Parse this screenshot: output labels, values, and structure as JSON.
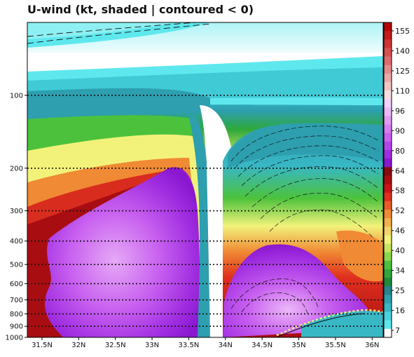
{
  "chart_data": {
    "type": "heatmap",
    "title": "U-wind (kt, shaded | contoured < 0)",
    "x_axis": {
      "range": [
        31.3,
        36.15
      ],
      "ticks": [
        {
          "value": 31.5,
          "label": "31.5N"
        },
        {
          "value": 32.0,
          "label": "32N"
        },
        {
          "value": 32.5,
          "label": "32.5N"
        },
        {
          "value": 33.0,
          "label": "33N"
        },
        {
          "value": 33.5,
          "label": "33.5N"
        },
        {
          "value": 34.0,
          "label": "34N"
        },
        {
          "value": 34.5,
          "label": "34.5N"
        },
        {
          "value": 35.0,
          "label": "35N"
        },
        {
          "value": 35.5,
          "label": "35.5N"
        },
        {
          "value": 36.0,
          "label": "36N"
        }
      ]
    },
    "y_axis": {
      "scale": "log",
      "inverted": true,
      "range": [
        1000,
        50
      ],
      "ticks": [
        {
          "value": 100,
          "label": "100"
        },
        {
          "value": 200,
          "label": "200"
        },
        {
          "value": 300,
          "label": "300"
        },
        {
          "value": 400,
          "label": "400"
        },
        {
          "value": 500,
          "label": "500"
        },
        {
          "value": 600,
          "label": "600"
        },
        {
          "value": 700,
          "label": "700"
        },
        {
          "value": 800,
          "label": "800"
        },
        {
          "value": 900,
          "label": "900"
        },
        {
          "value": 1000,
          "label": "1000"
        }
      ]
    },
    "grid": "dotted horizontal lines at pressure ticks",
    "colorbar": {
      "labels": [
        "155",
        "140",
        "125",
        "110",
        "96",
        "90",
        "80",
        "64",
        "58",
        "52",
        "46",
        "40",
        "34",
        "25",
        "16",
        "7"
      ],
      "colors": [
        "#ffffff",
        "#5ee8ee",
        "#4ad2dd",
        "#38b7c5",
        "#2d9faf",
        "#25868f",
        "#1c8a3a",
        "#2fa83a",
        "#4cc23c",
        "#8ad84a",
        "#c6e65e",
        "#f2f27a",
        "#f6d36a",
        "#f5b04a",
        "#f08a34",
        "#e85c26",
        "#df2f1e",
        "#c8141a",
        "#a80d12",
        "#8a0a0e",
        "#8a18d0",
        "#a02de0",
        "#b544ec",
        "#c860f0",
        "#d67ef2",
        "#e29bf5",
        "#ecb8f8",
        "#f3d0fa",
        "#f7dede",
        "#f2c4c4",
        "#eba8a8",
        "#e58a8a",
        "#df6c6c",
        "#d85050",
        "#cf3434",
        "#c41c1c",
        "#b40808"
      ]
    },
    "field_description": [
      {
        "region": "jet core south",
        "lat_range": [
          31.4,
          33.5
        ],
        "pressure_range": [
          1000,
          200
        ],
        "value_kt": "80-96"
      },
      {
        "region": "jet core north",
        "lat_range": [
          33.8,
          35.8
        ],
        "pressure_range": [
          900,
          400
        ],
        "value_kt": "80-96"
      },
      {
        "region": "weak wind notch",
        "lat_range": [
          33.5,
          34.0
        ],
        "pressure_range": [
          1000,
          110
        ],
        "value_kt": "7-25"
      },
      {
        "region": "negative u contours",
        "lat_range": [
          34.0,
          36.0
        ],
        "pressure_range": [
          200,
          160
        ],
        "value_kt": "< 0"
      }
    ]
  }
}
